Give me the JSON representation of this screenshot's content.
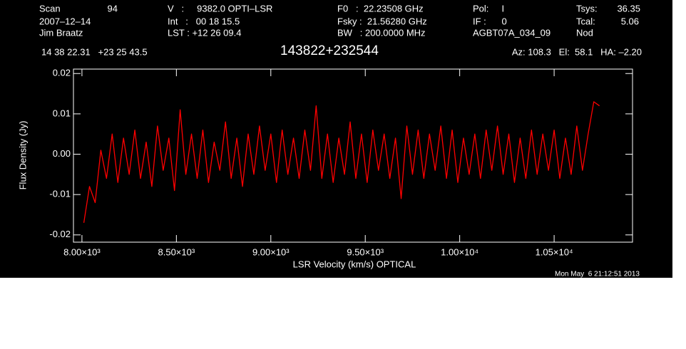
{
  "header": {
    "row1": [
      "Scan",
      "94",
      "V   :     9382.0 OPTI–LSR",
      "F0   :  22.23508 GHz",
      "Pol:     I",
      "Tsys:",
      "36.35"
    ],
    "row2": [
      "2007–12–14",
      "Int   :   00 18 15.5",
      "Fsky :  21.56280 GHz",
      "IF :      0",
      "Tcal:",
      "5.06"
    ],
    "row3": [
      "Jim Braatz",
      "LST : +12 26 09.4",
      "BW   : 200.0000 MHz",
      "AGBT07A_034_09",
      "Nod"
    ],
    "position": "14 38 22.31   +23 25 43.5",
    "source": "143822+232544",
    "pointing": "Az: 108.3   El:  58.1   HA: –2.20",
    "timestamp": "Mon May  6 21:12:51 2013"
  },
  "chart_data": {
    "type": "line",
    "xlabel": "LSR Velocity (km/s) OPTICAL",
    "ylabel": "Flux Density (Jy)",
    "xlim": [
      7955,
      10915
    ],
    "ylim": [
      -0.0218,
      0.0211
    ],
    "xticks": [
      {
        "value": 8000,
        "label": "8.00×10³"
      },
      {
        "value": 8500,
        "label": "8.50×10³"
      },
      {
        "value": 9000,
        "label": "9.00×10³"
      },
      {
        "value": 9500,
        "label": "9.50×10³"
      },
      {
        "value": 10000,
        "label": "1.00×10⁴"
      },
      {
        "value": 10500,
        "label": "1.05×10⁴"
      }
    ],
    "yticks": [
      0.02,
      0.01,
      {
        "value": 0,
        "label": "0.00"
      },
      -0.01,
      -0.02
    ],
    "x": [
      8010,
      8040,
      8070,
      8100,
      8130,
      8160,
      8190,
      8220,
      8250,
      8280,
      8310,
      8340,
      8370,
      8400,
      8430,
      8460,
      8490,
      8520,
      8550,
      8580,
      8610,
      8640,
      8670,
      8700,
      8730,
      8760,
      8790,
      8820,
      8850,
      8880,
      8910,
      8940,
      8970,
      9000,
      9030,
      9060,
      9090,
      9120,
      9150,
      9180,
      9210,
      9240,
      9270,
      9300,
      9330,
      9360,
      9390,
      9420,
      9450,
      9480,
      9510,
      9540,
      9570,
      9600,
      9630,
      9660,
      9690,
      9720,
      9750,
      9780,
      9810,
      9840,
      9870,
      9900,
      9930,
      9960,
      9990,
      10020,
      10050,
      10080,
      10110,
      10140,
      10170,
      10200,
      10230,
      10260,
      10290,
      10320,
      10350,
      10380,
      10410,
      10440,
      10470,
      10500,
      10530,
      10560,
      10590,
      10620,
      10650,
      10680,
      10710,
      10740
    ],
    "series": [
      {
        "color": "#ff0000",
        "values": [
          -0.017,
          -0.008,
          -0.012,
          0.001,
          -0.006,
          0.005,
          -0.007,
          0.004,
          -0.005,
          0.006,
          -0.006,
          0.003,
          -0.008,
          0.007,
          -0.004,
          0.004,
          -0.009,
          0.011,
          -0.005,
          0.005,
          -0.006,
          0.006,
          -0.007,
          0.003,
          -0.004,
          0.008,
          -0.006,
          0.004,
          -0.008,
          0.005,
          -0.005,
          0.007,
          -0.004,
          0.005,
          -0.007,
          0.006,
          -0.005,
          0.004,
          -0.006,
          0.006,
          -0.004,
          0.012,
          -0.006,
          0.005,
          -0.007,
          0.004,
          -0.005,
          0.008,
          -0.006,
          0.005,
          -0.007,
          0.006,
          -0.004,
          0.005,
          -0.006,
          0.004,
          -0.011,
          0.007,
          -0.005,
          0.006,
          -0.006,
          0.005,
          -0.004,
          0.007,
          -0.006,
          0.006,
          -0.007,
          0.004,
          -0.005,
          0.005,
          -0.006,
          0.006,
          -0.004,
          0.007,
          -0.005,
          0.005,
          -0.007,
          0.004,
          -0.006,
          0.006,
          -0.005,
          0.005,
          -0.004,
          0.006,
          -0.006,
          0.004,
          -0.005,
          0.007,
          -0.004,
          0.005,
          0.013,
          0.012
        ]
      }
    ]
  }
}
